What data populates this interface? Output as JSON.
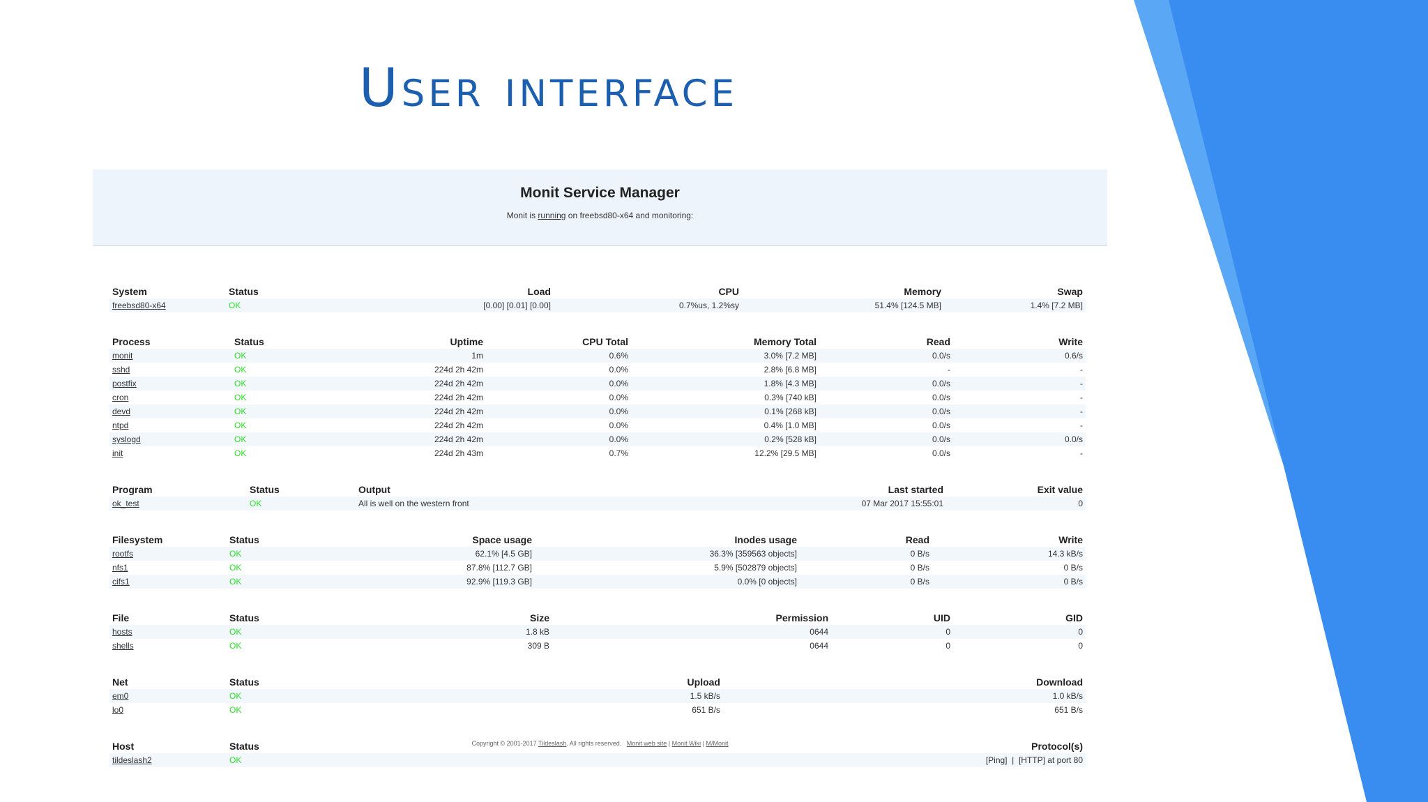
{
  "slide": {
    "title": "User interface",
    "colors": {
      "title": "#1c5fae",
      "band_dark": "#3a8df0",
      "band_light": "#5aa7f5"
    }
  },
  "monit": {
    "title": "Monit Service Manager",
    "subtitle_pre": "Monit is",
    "subtitle_link": "running",
    "subtitle_post": "on freebsd80-x64 and monitoring:",
    "status_ok_color": "#2ee02e"
  },
  "system": {
    "headers": [
      "System",
      "Status",
      "Load",
      "CPU",
      "Memory",
      "Swap"
    ],
    "rows": [
      {
        "name": "freebsd80-x64",
        "status": "OK",
        "load": "[0.00] [0.01] [0.00]",
        "cpu": "0.7%us, 1.2%sy",
        "memory": "51.4% [124.5 MB]",
        "swap": "1.4% [7.2 MB]"
      }
    ]
  },
  "process": {
    "headers": [
      "Process",
      "Status",
      "Uptime",
      "CPU Total",
      "Memory Total",
      "Read",
      "Write"
    ],
    "rows": [
      {
        "name": "monit",
        "status": "OK",
        "uptime": "1m",
        "cpu": "0.6%",
        "memory": "3.0% [7.2 MB]",
        "read": "0.0/s",
        "write": "0.6/s"
      },
      {
        "name": "sshd",
        "status": "OK",
        "uptime": "224d 2h 42m",
        "cpu": "0.0%",
        "memory": "2.8% [6.8 MB]",
        "read": "-",
        "write": "-"
      },
      {
        "name": "postfix",
        "status": "OK",
        "uptime": "224d 2h 42m",
        "cpu": "0.0%",
        "memory": "1.8% [4.3 MB]",
        "read": "0.0/s",
        "write": "-"
      },
      {
        "name": "cron",
        "status": "OK",
        "uptime": "224d 2h 42m",
        "cpu": "0.0%",
        "memory": "0.3% [740 kB]",
        "read": "0.0/s",
        "write": "-"
      },
      {
        "name": "devd",
        "status": "OK",
        "uptime": "224d 2h 42m",
        "cpu": "0.0%",
        "memory": "0.1% [268 kB]",
        "read": "0.0/s",
        "write": "-"
      },
      {
        "name": "ntpd",
        "status": "OK",
        "uptime": "224d 2h 42m",
        "cpu": "0.0%",
        "memory": "0.4% [1.0 MB]",
        "read": "0.0/s",
        "write": "-"
      },
      {
        "name": "syslogd",
        "status": "OK",
        "uptime": "224d 2h 42m",
        "cpu": "0.0%",
        "memory": "0.2% [528 kB]",
        "read": "0.0/s",
        "write": "0.0/s"
      },
      {
        "name": "init",
        "status": "OK",
        "uptime": "224d 2h 43m",
        "cpu": "0.7%",
        "memory": "12.2% [29.5 MB]",
        "read": "0.0/s",
        "write": "-"
      }
    ]
  },
  "program": {
    "headers": [
      "Program",
      "Status",
      "Output",
      "Last started",
      "Exit value"
    ],
    "rows": [
      {
        "name": "ok_test",
        "status": "OK",
        "output": "All is well on the western front",
        "last_started": "07 Mar 2017 15:55:01",
        "exit": "0"
      }
    ]
  },
  "filesystem": {
    "headers": [
      "Filesystem",
      "Status",
      "Space usage",
      "Inodes usage",
      "Read",
      "Write"
    ],
    "rows": [
      {
        "name": "rootfs",
        "status": "OK",
        "space": "62.1% [4.5 GB]",
        "inodes": "36.3% [359563 objects]",
        "read": "0 B/s",
        "write": "14.3 kB/s"
      },
      {
        "name": "nfs1",
        "status": "OK",
        "space": "87.8% [112.7 GB]",
        "inodes": "5.9% [502879 objects]",
        "read": "0 B/s",
        "write": "0 B/s"
      },
      {
        "name": "cifs1",
        "status": "OK",
        "space": "92.9% [119.3 GB]",
        "inodes": "0.0% [0 objects]",
        "read": "0 B/s",
        "write": "0 B/s"
      }
    ]
  },
  "file": {
    "headers": [
      "File",
      "Status",
      "Size",
      "Permission",
      "UID",
      "GID"
    ],
    "rows": [
      {
        "name": "hosts",
        "status": "OK",
        "size": "1.8 kB",
        "perm": "0644",
        "uid": "0",
        "gid": "0"
      },
      {
        "name": "shells",
        "status": "OK",
        "size": "309 B",
        "perm": "0644",
        "uid": "0",
        "gid": "0"
      }
    ]
  },
  "net": {
    "headers": [
      "Net",
      "Status",
      "Upload",
      "Download"
    ],
    "rows": [
      {
        "name": "em0",
        "status": "OK",
        "upload": "1.5 kB/s",
        "download": "1.0 kB/s"
      },
      {
        "name": "lo0",
        "status": "OK",
        "upload": "651 B/s",
        "download": "651 B/s"
      }
    ]
  },
  "host": {
    "headers": [
      "Host",
      "Status",
      "Protocol(s)"
    ],
    "rows": [
      {
        "name": "tildeslash2",
        "status": "OK",
        "protocols": "[Ping]  |  [HTTP] at port 80"
      }
    ]
  },
  "footer": {
    "copyright": "Copyright © 2001-2017",
    "company": "Tildeslash",
    "rights": ". All rights reserved.",
    "link1": "Monit web site",
    "sep1": " | ",
    "link2": "Monit Wiki",
    "sep2": " | ",
    "link3": "M/Monit"
  }
}
